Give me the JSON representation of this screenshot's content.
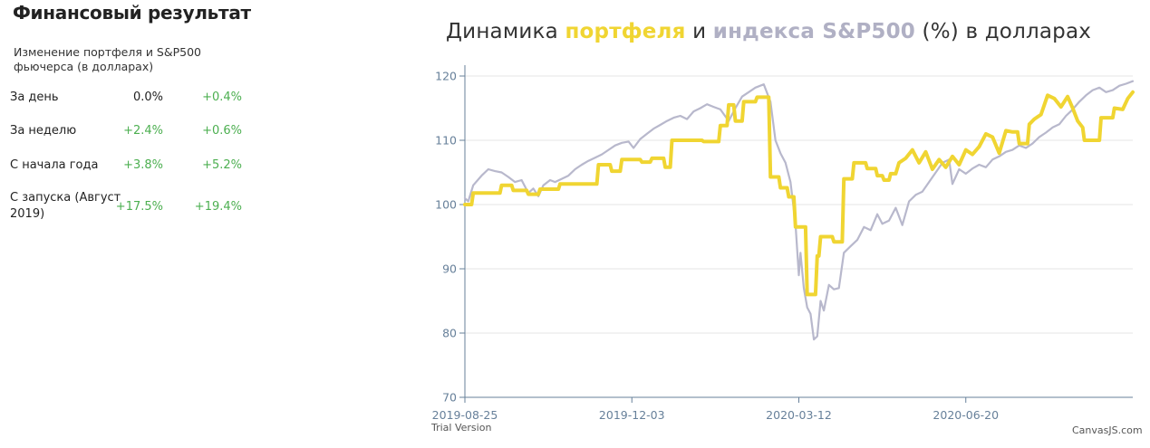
{
  "panel": {
    "heading": "Финансовый результат",
    "subtitle": "Изменение портфеля и S&P500 фьючерса (в долларах)",
    "rows": [
      {
        "label": "За день",
        "portfolio": "0.0%",
        "index": "+0.4%"
      },
      {
        "label": "За неделю",
        "portfolio": "+2.4%",
        "index": "+0.6%"
      },
      {
        "label": "С начала года",
        "portfolio": "+3.8%",
        "index": "+5.2%"
      },
      {
        "label": "С запуска (Август 2019)",
        "portfolio": "+17.5%",
        "index": "+19.4%"
      }
    ],
    "colors": {
      "positive": "#4caf50",
      "neutral": "#222222"
    }
  },
  "chart_title": {
    "pre": "Динамика",
    "portfolio_word": "портфеля",
    "mid": "и",
    "index_word": "индекса S&P500",
    "post": "(%) в долларах"
  },
  "credits": {
    "trial": "Trial Version",
    "brand": "CanvasJS.com"
  },
  "chart_data": {
    "type": "line",
    "title": "Динамика портфеля и индекса S&P500 (%) в долларах",
    "xlabel": "",
    "ylabel": "",
    "ylim": [
      70,
      120
    ],
    "y_ticks": [
      70,
      80,
      90,
      100,
      110,
      120
    ],
    "xlim": [
      "2019-08-25",
      "2020-09-28"
    ],
    "x_ticks": [
      "2019-08-25",
      "2019-12-03",
      "2020-03-12",
      "2020-06-20"
    ],
    "grid": {
      "horizontal": true,
      "vertical": false
    },
    "colors": {
      "portfolio": "#f0d532",
      "index": "#b8b8cc",
      "axis": "#67809a"
    },
    "series": [
      {
        "key": "portfolio",
        "points": [
          [
            "2019-08-25",
            100
          ],
          [
            "2019-08-29",
            100
          ],
          [
            "2019-08-30",
            101.8
          ],
          [
            "2019-09-15",
            101.8
          ],
          [
            "2019-09-16",
            103
          ],
          [
            "2019-09-22",
            103
          ],
          [
            "2019-09-23",
            102.2
          ],
          [
            "2019-10-01",
            102.2
          ],
          [
            "2019-10-02",
            101.6
          ],
          [
            "2019-10-08",
            101.6
          ],
          [
            "2019-10-09",
            102.4
          ],
          [
            "2019-10-20",
            102.4
          ],
          [
            "2019-10-21",
            103.2
          ],
          [
            "2019-11-12",
            103.2
          ],
          [
            "2019-11-13",
            106.2
          ],
          [
            "2019-11-20",
            106.2
          ],
          [
            "2019-11-21",
            105.2
          ],
          [
            "2019-11-26",
            105.2
          ],
          [
            "2019-11-27",
            107
          ],
          [
            "2019-12-08",
            107
          ],
          [
            "2019-12-09",
            106.6
          ],
          [
            "2019-12-14",
            106.6
          ],
          [
            "2019-12-15",
            107.2
          ],
          [
            "2019-12-22",
            107.2
          ],
          [
            "2019-12-23",
            105.8
          ],
          [
            "2019-12-26",
            105.8
          ],
          [
            "2019-12-27",
            110
          ],
          [
            "2020-01-14",
            110
          ],
          [
            "2020-01-15",
            109.8
          ],
          [
            "2020-01-24",
            109.8
          ],
          [
            "2020-01-25",
            112.3
          ],
          [
            "2020-01-29",
            112.3
          ],
          [
            "2020-01-30",
            115.5
          ],
          [
            "2020-02-02",
            115.5
          ],
          [
            "2020-02-03",
            113
          ],
          [
            "2020-02-07",
            113
          ],
          [
            "2020-02-08",
            116
          ],
          [
            "2020-02-15",
            116
          ],
          [
            "2020-02-16",
            116.7
          ],
          [
            "2020-02-23",
            116.7
          ],
          [
            "2020-02-24",
            104.3
          ],
          [
            "2020-02-29",
            104.3
          ],
          [
            "2020-03-01",
            102.6
          ],
          [
            "2020-03-05",
            102.6
          ],
          [
            "2020-03-06",
            101.2
          ],
          [
            "2020-03-09",
            101.2
          ],
          [
            "2020-03-10",
            96.5
          ],
          [
            "2020-03-16",
            96.5
          ],
          [
            "2020-03-17",
            86
          ],
          [
            "2020-03-22",
            86
          ],
          [
            "2020-03-23",
            92
          ],
          [
            "2020-03-24",
            92
          ],
          [
            "2020-03-25",
            95
          ],
          [
            "2020-04-01",
            95
          ],
          [
            "2020-04-02",
            94.2
          ],
          [
            "2020-04-07",
            94.2
          ],
          [
            "2020-04-08",
            104
          ],
          [
            "2020-04-13",
            104
          ],
          [
            "2020-04-14",
            106.5
          ],
          [
            "2020-04-21",
            106.5
          ],
          [
            "2020-04-22",
            105.6
          ],
          [
            "2020-04-27",
            105.6
          ],
          [
            "2020-04-28",
            104.5
          ],
          [
            "2020-05-01",
            104.5
          ],
          [
            "2020-05-02",
            103.8
          ],
          [
            "2020-05-05",
            103.8
          ],
          [
            "2020-05-06",
            104.8
          ],
          [
            "2020-05-09",
            104.8
          ],
          [
            "2020-05-11",
            106.5
          ],
          [
            "2020-05-15",
            107.2
          ],
          [
            "2020-05-19",
            108.5
          ],
          [
            "2020-05-23",
            106.5
          ],
          [
            "2020-05-27",
            108.2
          ],
          [
            "2020-05-31",
            105.5
          ],
          [
            "2020-06-04",
            107
          ],
          [
            "2020-06-08",
            105.8
          ],
          [
            "2020-06-12",
            107.5
          ],
          [
            "2020-06-16",
            106.2
          ],
          [
            "2020-06-20",
            108.5
          ],
          [
            "2020-06-24",
            107.8
          ],
          [
            "2020-06-28",
            109
          ],
          [
            "2020-07-02",
            111
          ],
          [
            "2020-07-06",
            110.5
          ],
          [
            "2020-07-10",
            108
          ],
          [
            "2020-07-14",
            111.5
          ],
          [
            "2020-07-18",
            111.3
          ],
          [
            "2020-07-21",
            111.3
          ],
          [
            "2020-07-22",
            109.5
          ],
          [
            "2020-07-27",
            109.5
          ],
          [
            "2020-07-28",
            112.5
          ],
          [
            "2020-07-31",
            113.3
          ],
          [
            "2020-08-04",
            114
          ],
          [
            "2020-08-08",
            117
          ],
          [
            "2020-08-12",
            116.5
          ],
          [
            "2020-08-16",
            115.2
          ],
          [
            "2020-08-20",
            116.8
          ],
          [
            "2020-08-23",
            115
          ],
          [
            "2020-08-26",
            113
          ],
          [
            "2020-08-29",
            112
          ],
          [
            "2020-08-30",
            110
          ],
          [
            "2020-09-08",
            110
          ],
          [
            "2020-09-09",
            113.5
          ],
          [
            "2020-09-16",
            113.5
          ],
          [
            "2020-09-17",
            115
          ],
          [
            "2020-09-22",
            114.8
          ],
          [
            "2020-09-25",
            116.5
          ],
          [
            "2020-09-28",
            117.5
          ]
        ]
      },
      {
        "key": "index",
        "points": [
          [
            "2019-08-25",
            101
          ],
          [
            "2019-08-27",
            100.5
          ],
          [
            "2019-08-30",
            103
          ],
          [
            "2019-09-04",
            104.5
          ],
          [
            "2019-09-08",
            105.5
          ],
          [
            "2019-09-12",
            105.2
          ],
          [
            "2019-09-16",
            105
          ],
          [
            "2019-09-20",
            104.3
          ],
          [
            "2019-09-24",
            103.5
          ],
          [
            "2019-09-28",
            103.8
          ],
          [
            "2019-10-02",
            101.8
          ],
          [
            "2019-10-05",
            102.5
          ],
          [
            "2019-10-08",
            101.3
          ],
          [
            "2019-10-11",
            103
          ],
          [
            "2019-10-15",
            103.8
          ],
          [
            "2019-10-18",
            103.5
          ],
          [
            "2019-10-22",
            104
          ],
          [
            "2019-10-26",
            104.5
          ],
          [
            "2019-10-30",
            105.5
          ],
          [
            "2019-11-03",
            106.2
          ],
          [
            "2019-11-07",
            106.8
          ],
          [
            "2019-11-11",
            107.3
          ],
          [
            "2019-11-15",
            107.8
          ],
          [
            "2019-11-19",
            108.5
          ],
          [
            "2019-11-23",
            109.2
          ],
          [
            "2019-11-27",
            109.6
          ],
          [
            "2019-12-01",
            109.8
          ],
          [
            "2019-12-04",
            108.8
          ],
          [
            "2019-12-08",
            110.2
          ],
          [
            "2019-12-12",
            111
          ],
          [
            "2019-12-16",
            111.8
          ],
          [
            "2019-12-20",
            112.4
          ],
          [
            "2019-12-24",
            113
          ],
          [
            "2019-12-28",
            113.5
          ],
          [
            "2020-01-01",
            113.8
          ],
          [
            "2020-01-05",
            113.3
          ],
          [
            "2020-01-09",
            114.5
          ],
          [
            "2020-01-13",
            115
          ],
          [
            "2020-01-17",
            115.6
          ],
          [
            "2020-01-21",
            115.2
          ],
          [
            "2020-01-25",
            114.8
          ],
          [
            "2020-01-30",
            113
          ],
          [
            "2020-02-03",
            115
          ],
          [
            "2020-02-07",
            116.8
          ],
          [
            "2020-02-11",
            117.5
          ],
          [
            "2020-02-15",
            118.2
          ],
          [
            "2020-02-20",
            118.7
          ],
          [
            "2020-02-24",
            116
          ],
          [
            "2020-02-27",
            110
          ],
          [
            "2020-03-01",
            108
          ],
          [
            "2020-03-04",
            106.5
          ],
          [
            "2020-03-07",
            103.5
          ],
          [
            "2020-03-10",
            97
          ],
          [
            "2020-03-12",
            89
          ],
          [
            "2020-03-13",
            92.5
          ],
          [
            "2020-03-15",
            87
          ],
          [
            "2020-03-17",
            84
          ],
          [
            "2020-03-19",
            83
          ],
          [
            "2020-03-21",
            79
          ],
          [
            "2020-03-23",
            79.5
          ],
          [
            "2020-03-25",
            85
          ],
          [
            "2020-03-27",
            83.5
          ],
          [
            "2020-03-30",
            87.5
          ],
          [
            "2020-04-02",
            86.8
          ],
          [
            "2020-04-05",
            87
          ],
          [
            "2020-04-08",
            92.5
          ],
          [
            "2020-04-12",
            93.5
          ],
          [
            "2020-04-16",
            94.5
          ],
          [
            "2020-04-20",
            96.5
          ],
          [
            "2020-04-24",
            96
          ],
          [
            "2020-04-28",
            98.5
          ],
          [
            "2020-05-01",
            97
          ],
          [
            "2020-05-05",
            97.5
          ],
          [
            "2020-05-09",
            99.5
          ],
          [
            "2020-05-13",
            96.8
          ],
          [
            "2020-05-17",
            100.5
          ],
          [
            "2020-05-21",
            101.5
          ],
          [
            "2020-05-25",
            102
          ],
          [
            "2020-05-29",
            103.5
          ],
          [
            "2020-06-02",
            105
          ],
          [
            "2020-06-06",
            106.5
          ],
          [
            "2020-06-10",
            107
          ],
          [
            "2020-06-12",
            103.2
          ],
          [
            "2020-06-16",
            105.5
          ],
          [
            "2020-06-20",
            104.8
          ],
          [
            "2020-06-24",
            105.6
          ],
          [
            "2020-06-28",
            106.2
          ],
          [
            "2020-07-02",
            105.8
          ],
          [
            "2020-07-06",
            107
          ],
          [
            "2020-07-10",
            107.5
          ],
          [
            "2020-07-14",
            108.2
          ],
          [
            "2020-07-18",
            108.5
          ],
          [
            "2020-07-22",
            109.2
          ],
          [
            "2020-07-26",
            108.8
          ],
          [
            "2020-07-30",
            109.5
          ],
          [
            "2020-08-03",
            110.5
          ],
          [
            "2020-08-07",
            111.2
          ],
          [
            "2020-08-11",
            112
          ],
          [
            "2020-08-15",
            112.5
          ],
          [
            "2020-08-19",
            113.8
          ],
          [
            "2020-08-23",
            114.8
          ],
          [
            "2020-08-27",
            116
          ],
          [
            "2020-08-31",
            117
          ],
          [
            "2020-09-04",
            117.8
          ],
          [
            "2020-09-08",
            118.2
          ],
          [
            "2020-09-12",
            117.5
          ],
          [
            "2020-09-16",
            117.8
          ],
          [
            "2020-09-20",
            118.5
          ],
          [
            "2020-09-24",
            118.8
          ],
          [
            "2020-09-28",
            119.2
          ]
        ]
      }
    ]
  }
}
